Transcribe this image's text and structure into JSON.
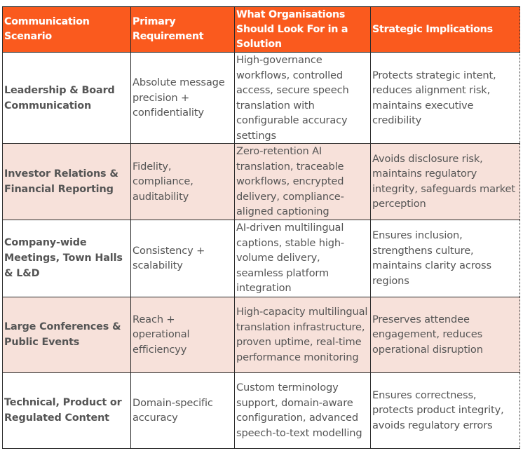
{
  "theme": {
    "header_bg": "#fa5a1e",
    "header_text": "#ffffff",
    "alt_row_bg": "#f7e1da",
    "row_bg": "#ffffff",
    "body_text": "#555555",
    "border": "#2b2b2b"
  },
  "table": {
    "headers": [
      "Communication Scenario",
      "Primary Requirement",
      "What Organisations Should Look For in a Solution",
      "Strategic Implications"
    ],
    "rows": [
      {
        "scenario": "Leadership & Board Communication",
        "requirement": "Absolute message precision + confidentiality",
        "solution": "High-governance workflows, controlled access, secure speech translation with configurable accuracy settings",
        "implications": "Protects strategic intent, reduces alignment risk, maintains executive credibility"
      },
      {
        "scenario": "Investor Relations & Financial Reporting",
        "requirement": "Fidelity, compliance, auditability",
        "solution": "Zero-retention AI translation, traceable workflows, encrypted delivery, compliance-aligned captioning",
        "implications": "Avoids disclosure risk, maintains regulatory integrity, safeguards market perception"
      },
      {
        "scenario": "Company-wide Meetings, Town Halls & L&D",
        "requirement": "Consistency + scalability",
        "solution": "AI-driven multilingual captions, stable high-volume delivery, seamless platform integration",
        "implications": "Ensures inclusion, strengthens culture, maintains clarity across regions"
      },
      {
        "scenario": "Large Conferences & Public Events",
        "requirement": "Reach + operational efficiencyy",
        "solution": "High-capacity multilingual translation infrastructure, proven uptime, real-time performance monitoring",
        "implications": "Preserves attendee engagement, reduces operational disruption"
      },
      {
        "scenario": "Technical, Product or Regulated Content",
        "requirement": "Domain-specific accuracy",
        "solution": "Custom terminology support, domain-aware configuration, advanced speech-to-text modelling",
        "implications": "Ensures correctness, protects product integrity, avoids regulatory errors"
      }
    ]
  }
}
